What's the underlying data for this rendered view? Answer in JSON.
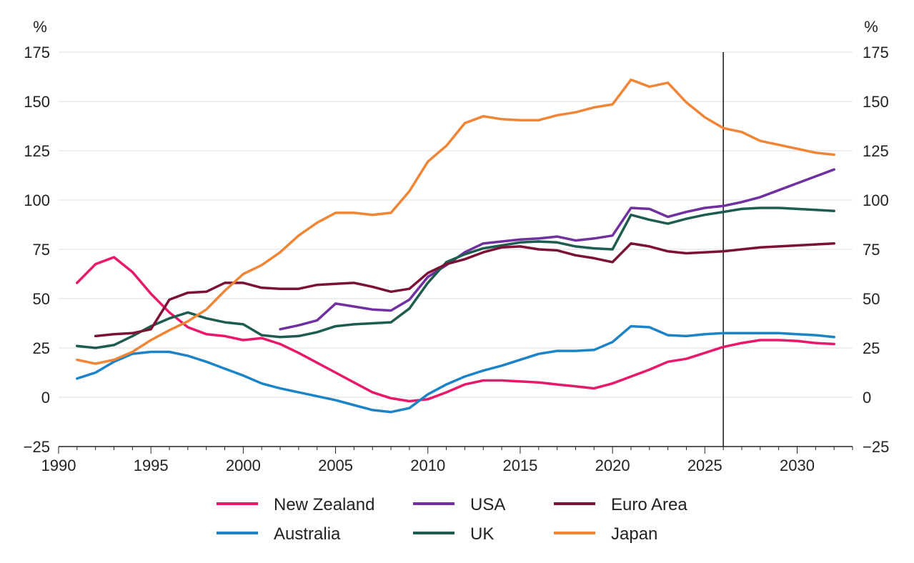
{
  "chart_data": {
    "type": "line",
    "left_unit": "%",
    "right_unit": "%",
    "xlim": [
      1990,
      2033
    ],
    "ylim": [
      -25,
      175
    ],
    "x_ticks": [
      1990,
      1995,
      2000,
      2005,
      2010,
      2015,
      2020,
      2025,
      2030
    ],
    "y_ticks": [
      -25,
      0,
      25,
      50,
      75,
      100,
      125,
      150,
      175
    ],
    "x_tick_labels": [
      "1990",
      "1995",
      "2000",
      "2005",
      "2010",
      "2015",
      "2020",
      "2025",
      "2030"
    ],
    "y_tick_labels": [
      "−25",
      "0",
      "25",
      "50",
      "75",
      "100",
      "125",
      "150",
      "175"
    ],
    "forecast_line_x": 2026,
    "grid": true,
    "legend_position": "bottom",
    "series": [
      {
        "name": "New Zealand",
        "color": "#e8196b",
        "x": [
          1991,
          1992,
          1993,
          1994,
          1995,
          1996,
          1997,
          1998,
          1999,
          2000,
          2001,
          2002,
          2003,
          2004,
          2005,
          2006,
          2007,
          2008,
          2009,
          2010,
          2011,
          2012,
          2013,
          2014,
          2015,
          2016,
          2017,
          2018,
          2019,
          2020,
          2021,
          2022,
          2023,
          2024,
          2025,
          2026,
          2027,
          2028,
          2029,
          2030,
          2031,
          2032
        ],
        "values": [
          58,
          67.5,
          71,
          63.5,
          52.5,
          43,
          35.5,
          32,
          31,
          29,
          30,
          27,
          22.5,
          17.5,
          12.5,
          7.5,
          2.5,
          -0.5,
          -2,
          -1,
          2.5,
          6.5,
          8.5,
          8.5,
          8,
          7.5,
          6.5,
          5.5,
          4.5,
          7,
          10.5,
          14,
          18,
          19.5,
          22.5,
          25.5,
          27.5,
          29,
          29,
          28.5,
          27.5,
          27
        ]
      },
      {
        "name": "Australia",
        "color": "#1c84c6",
        "x": [
          1991,
          1992,
          1993,
          1994,
          1995,
          1996,
          1997,
          1998,
          1999,
          2000,
          2001,
          2002,
          2003,
          2004,
          2005,
          2006,
          2007,
          2008,
          2009,
          2010,
          2011,
          2012,
          2013,
          2014,
          2015,
          2016,
          2017,
          2018,
          2019,
          2020,
          2021,
          2022,
          2023,
          2024,
          2025,
          2026,
          2027,
          2028,
          2029,
          2030,
          2031,
          2032
        ],
        "values": [
          9.5,
          12.5,
          18,
          22,
          23,
          23,
          21,
          18,
          14.5,
          11,
          7,
          4.5,
          2.5,
          0.5,
          -1.5,
          -4,
          -6.5,
          -7.5,
          -5.5,
          1.5,
          6.5,
          10.5,
          13.5,
          16,
          19,
          22,
          23.5,
          23.5,
          24,
          28,
          36,
          35.5,
          31.5,
          31,
          32,
          32.5,
          32.5,
          32.5,
          32.5,
          32,
          31.5,
          30.5
        ]
      },
      {
        "name": "USA",
        "color": "#7030a0",
        "x": [
          2002,
          2003,
          2004,
          2005,
          2006,
          2007,
          2008,
          2009,
          2010,
          2011,
          2012,
          2013,
          2014,
          2015,
          2016,
          2017,
          2018,
          2019,
          2020,
          2021,
          2022,
          2023,
          2024,
          2025,
          2026,
          2027,
          2028,
          2029,
          2030,
          2031,
          2032
        ],
        "values": [
          34.5,
          36.5,
          39,
          47.5,
          46,
          44.5,
          44,
          49.5,
          61,
          67,
          73.5,
          78,
          79,
          80,
          80.5,
          81.5,
          79.5,
          80.5,
          82,
          96,
          95.5,
          91.5,
          94,
          96,
          97,
          99,
          101.5,
          105,
          108.5,
          112,
          115.5
        ]
      },
      {
        "name": "UK",
        "color": "#1e5c50",
        "x": [
          1991,
          1992,
          1993,
          1994,
          1995,
          1996,
          1997,
          1998,
          1999,
          2000,
          2001,
          2002,
          2003,
          2004,
          2005,
          2006,
          2007,
          2008,
          2009,
          2010,
          2011,
          2012,
          2013,
          2014,
          2015,
          2016,
          2017,
          2018,
          2019,
          2020,
          2021,
          2022,
          2023,
          2024,
          2025,
          2026,
          2027,
          2028,
          2029,
          2030,
          2031,
          2032
        ],
        "values": [
          26,
          25,
          26.5,
          31,
          36,
          40,
          43,
          40,
          38,
          37,
          31.5,
          30.5,
          31,
          33,
          36,
          37,
          37.5,
          38,
          45,
          58,
          68.5,
          72.5,
          75.5,
          77,
          78.5,
          79,
          78.5,
          76.5,
          75.5,
          75,
          92.5,
          90,
          88,
          90.5,
          92.5,
          94,
          95.5,
          96,
          96,
          95.5,
          95,
          94.5
        ]
      },
      {
        "name": "Euro Area",
        "color": "#7b1135",
        "x": [
          1992,
          1993,
          1994,
          1995,
          1996,
          1997,
          1998,
          1999,
          2000,
          2001,
          2002,
          2003,
          2004,
          2005,
          2006,
          2007,
          2008,
          2009,
          2010,
          2011,
          2012,
          2013,
          2014,
          2015,
          2016,
          2017,
          2018,
          2019,
          2020,
          2021,
          2022,
          2023,
          2024,
          2025,
          2026,
          2027,
          2028,
          2029,
          2030,
          2031,
          2032
        ],
        "values": [
          31,
          32,
          32.5,
          34.5,
          49.5,
          53,
          53.5,
          58,
          58,
          55.5,
          55,
          55,
          57,
          57.5,
          58,
          56,
          53.5,
          55,
          63,
          67.5,
          70,
          73.5,
          76,
          76.5,
          75,
          74.5,
          72,
          70.5,
          68.5,
          78,
          76.5,
          74,
          73,
          73.5,
          74,
          75,
          76,
          76.5,
          77,
          77.5,
          78
        ]
      },
      {
        "name": "Japan",
        "color": "#ef8535",
        "x": [
          1991,
          1992,
          1993,
          1994,
          1995,
          1996,
          1997,
          1998,
          1999,
          2000,
          2001,
          2002,
          2003,
          2004,
          2005,
          2006,
          2007,
          2008,
          2009,
          2010,
          2011,
          2012,
          2013,
          2014,
          2015,
          2016,
          2017,
          2018,
          2019,
          2020,
          2021,
          2022,
          2023,
          2024,
          2025,
          2026,
          2027,
          2028,
          2029,
          2030,
          2031,
          2032
        ],
        "values": [
          19,
          17,
          19,
          23,
          29,
          34,
          38.5,
          44.5,
          54,
          62.5,
          67,
          73.5,
          82,
          88.5,
          93.5,
          93.5,
          92.5,
          93.5,
          104.5,
          119.5,
          127.5,
          139,
          142.5,
          141,
          140.5,
          140.5,
          143,
          144.5,
          147,
          148.5,
          161,
          157.5,
          159.5,
          149.5,
          142,
          136.5,
          134.5,
          130,
          128,
          126,
          124,
          123
        ]
      }
    ]
  }
}
